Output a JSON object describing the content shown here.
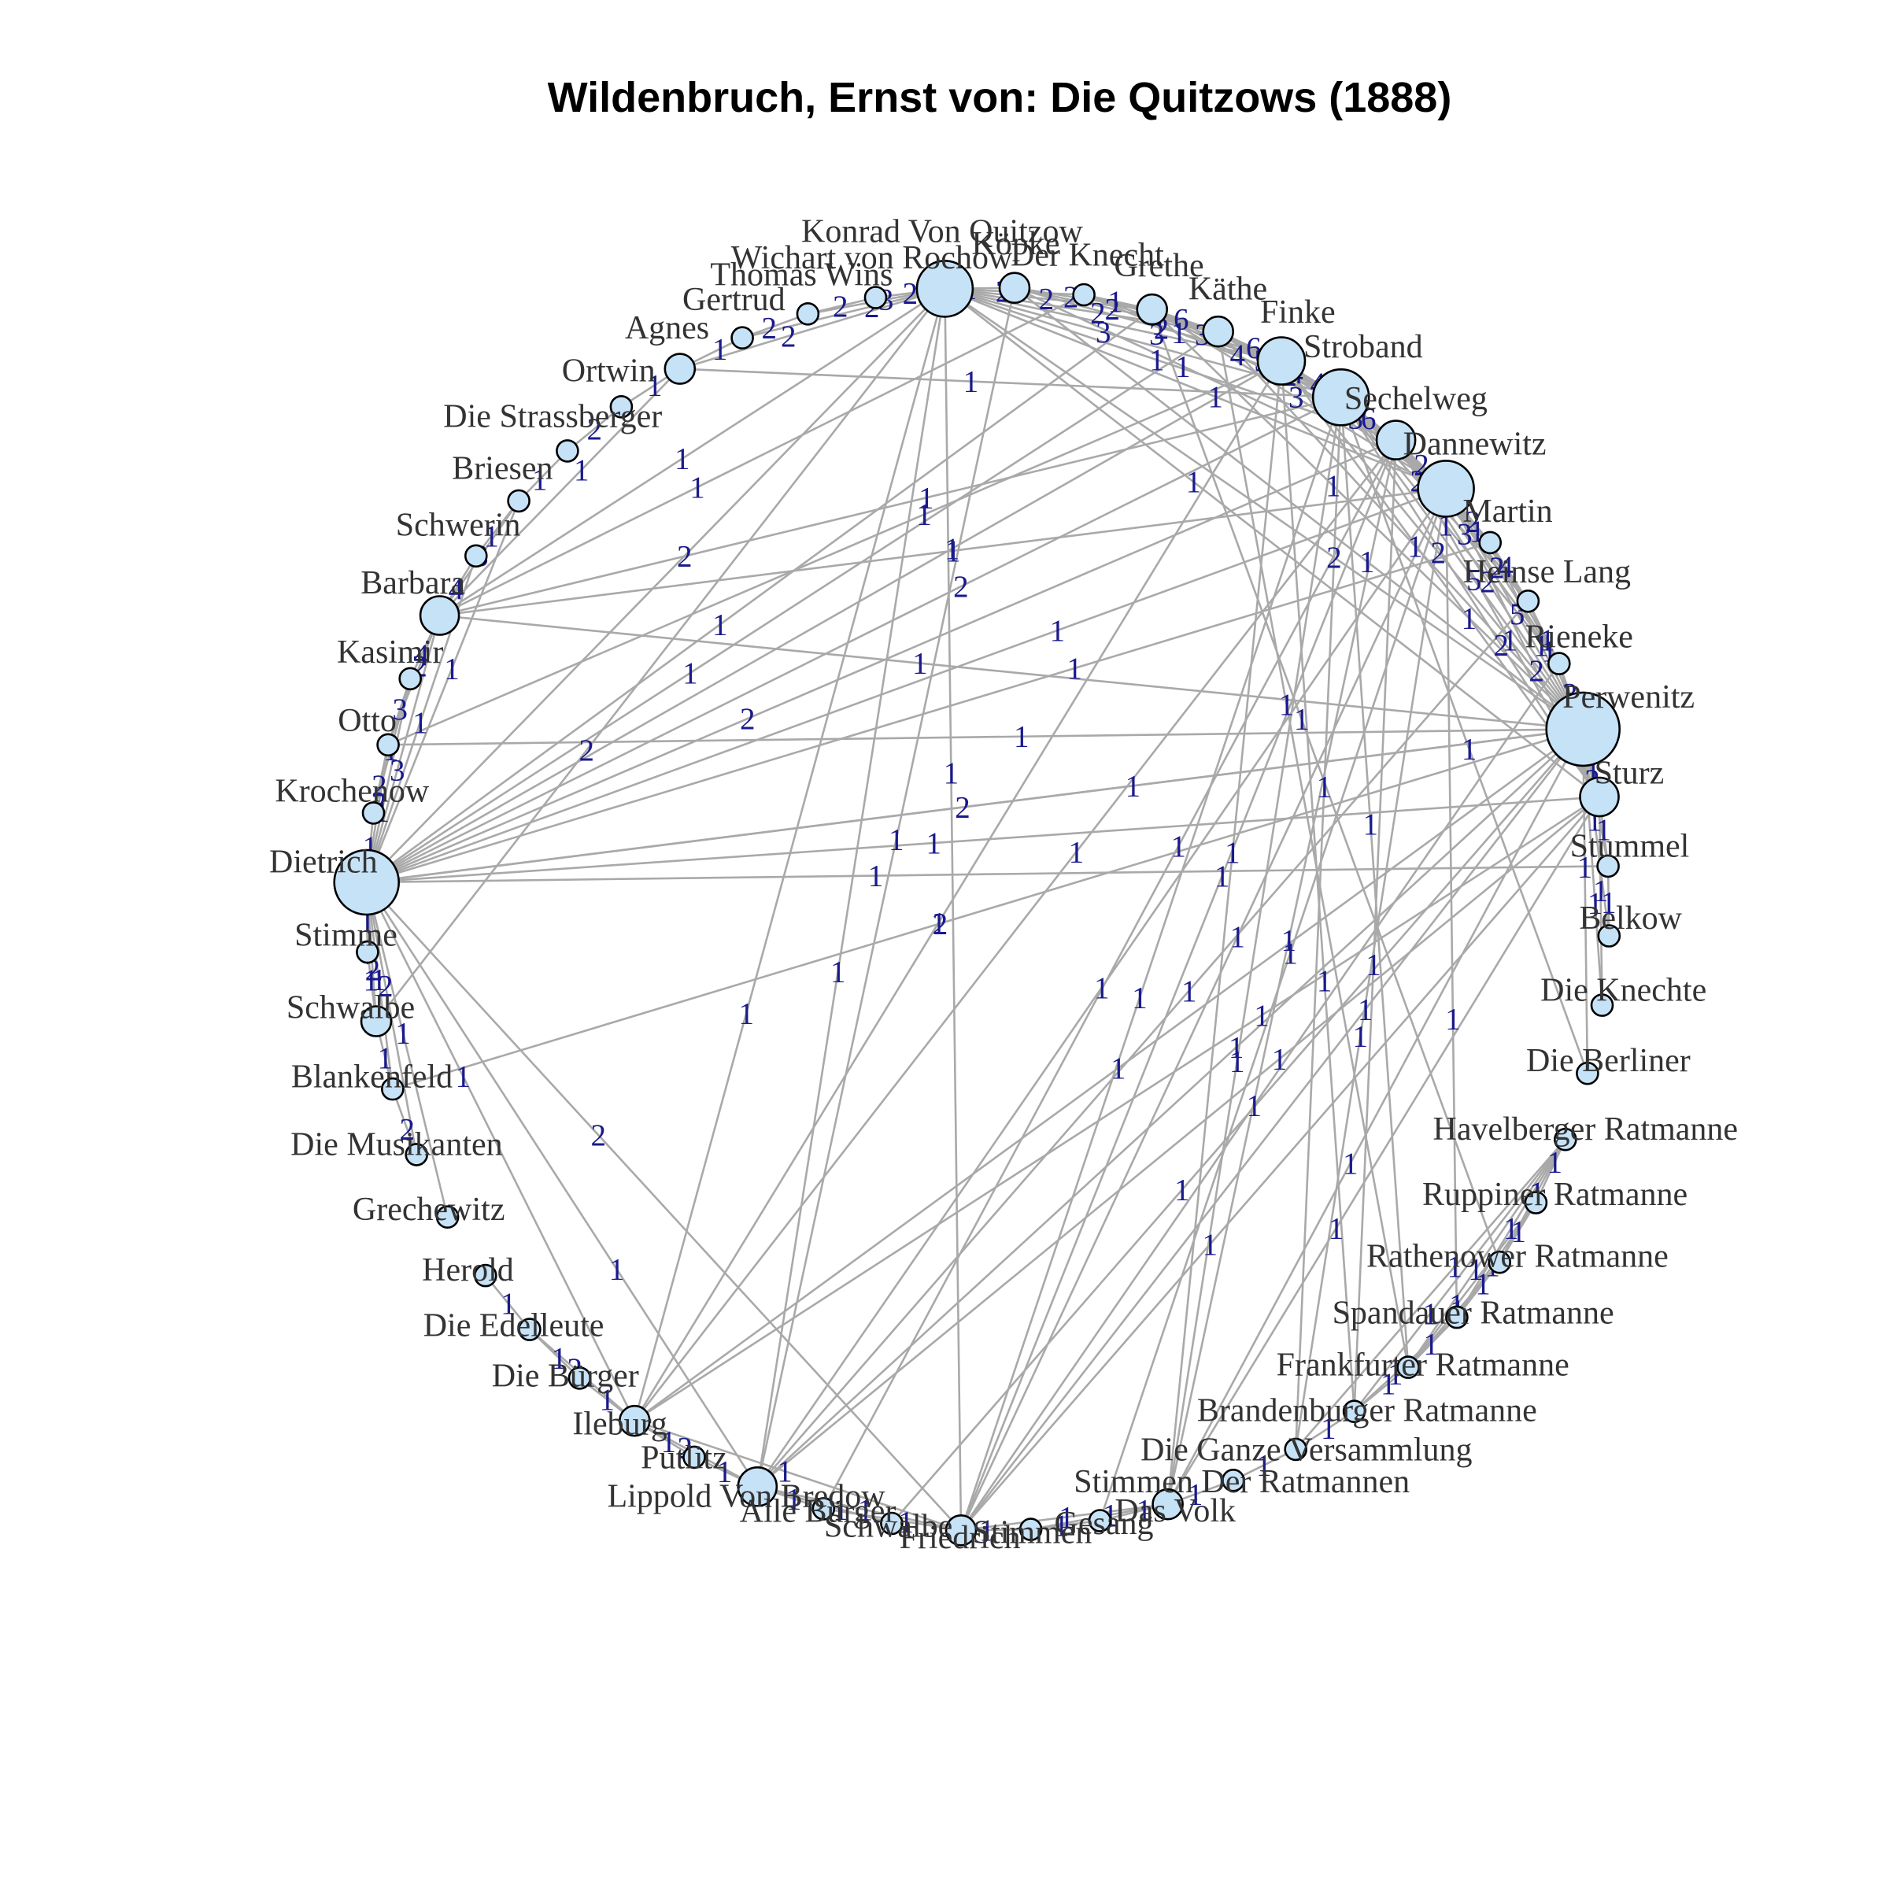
{
  "title": "Wildenbruch, Ernst von: Die Quitzows (1888)",
  "colors": {
    "edge": "#a9a9a9",
    "node_fill": "#c6e2f7",
    "node_stroke": "#000000",
    "edge_label": "#1a1a8c",
    "node_label": "#333333"
  },
  "layout": "circle",
  "nodes": [
    {
      "name": "Konrad Von Quitzow",
      "size": 5
    },
    {
      "name": "Köpke",
      "size": 2
    },
    {
      "name": "Der Knecht",
      "size": 1
    },
    {
      "name": "Grethe",
      "size": 2
    },
    {
      "name": "Käthe",
      "size": 2
    },
    {
      "name": "Finke",
      "size": 4
    },
    {
      "name": "Stroband",
      "size": 5
    },
    {
      "name": "Sechelweg",
      "size": 3
    },
    {
      "name": "Dannewitz",
      "size": 5
    },
    {
      "name": "Martin",
      "size": 1
    },
    {
      "name": "Heinse Lang",
      "size": 1
    },
    {
      "name": "Rieneke",
      "size": 1
    },
    {
      "name": "Perwenitz",
      "size": 7
    },
    {
      "name": "Sturz",
      "size": 3
    },
    {
      "name": "Stummel",
      "size": 1
    },
    {
      "name": "Belkow",
      "size": 1
    },
    {
      "name": "Die Knechte",
      "size": 1
    },
    {
      "name": "Die Berliner",
      "size": 1
    },
    {
      "name": "Havelberger Ratmanne",
      "size": 1
    },
    {
      "name": "Ruppiner Ratmanne",
      "size": 1
    },
    {
      "name": "Rathenower Ratmanne",
      "size": 1
    },
    {
      "name": "Spandauer Ratmanne",
      "size": 1
    },
    {
      "name": "Frankfurter Ratmanne",
      "size": 1
    },
    {
      "name": "Brandenburger Ratmanne",
      "size": 1
    },
    {
      "name": "Die Ganze Versammlung",
      "size": 1
    },
    {
      "name": "Stimmen Der Ratmannen",
      "size": 1
    },
    {
      "name": "Das Volk",
      "size": 2
    },
    {
      "name": "Gesang",
      "size": 1
    },
    {
      "name": "Stimmen",
      "size": 1
    },
    {
      "name": "Friedrich",
      "size": 2
    },
    {
      "name": "Schwalbe",
      "size": 1
    },
    {
      "name": "Alle Bürger",
      "size": 1
    },
    {
      "name": "Lippold Von Bredow",
      "size": 3
    },
    {
      "name": "Putlitz",
      "size": 1
    },
    {
      "name": "Ileburg",
      "size": 2
    },
    {
      "name": "Die Bürger",
      "size": 1
    },
    {
      "name": "Die Edelleute",
      "size": 1
    },
    {
      "name": "Herold",
      "size": 1
    },
    {
      "name": "Grechewitz",
      "size": 1
    },
    {
      "name": "Die Musikanten",
      "size": 1
    },
    {
      "name": "Blankenfeld",
      "size": 1
    },
    {
      "name": "Schwalbe",
      "size": 2
    },
    {
      "name": "Stimme",
      "size": 1
    },
    {
      "name": "Dietrich",
      "size": 6
    },
    {
      "name": "Krochenow",
      "size": 1
    },
    {
      "name": "Otto",
      "size": 1
    },
    {
      "name": "Kasimir",
      "size": 1
    },
    {
      "name": "Barbara",
      "size": 3
    },
    {
      "name": "Schwerin",
      "size": 1
    },
    {
      "name": "Briesen",
      "size": 1
    },
    {
      "name": "Die Strassberger",
      "size": 1
    },
    {
      "name": "Ortwin",
      "size": 1
    },
    {
      "name": "Agnes",
      "size": 2
    },
    {
      "name": "Gertrud",
      "size": 1
    },
    {
      "name": "Thomas Wins",
      "size": 1
    },
    {
      "name": "Wichart von Rochow",
      "size": 1
    }
  ],
  "edges": [
    [
      0,
      1,
      1
    ],
    [
      0,
      2,
      2
    ],
    [
      0,
      3,
      2
    ],
    [
      0,
      4,
      2
    ],
    [
      0,
      5,
      3
    ],
    [
      0,
      6,
      3
    ],
    [
      0,
      7,
      1
    ],
    [
      0,
      8,
      1
    ],
    [
      0,
      12,
      2
    ],
    [
      0,
      13,
      1
    ],
    [
      0,
      43,
      2
    ],
    [
      0,
      47,
      1
    ],
    [
      0,
      52,
      2
    ],
    [
      0,
      53,
      2
    ],
    [
      0,
      54,
      3
    ],
    [
      0,
      55,
      2
    ],
    [
      0,
      32,
      1
    ],
    [
      0,
      34,
      1
    ],
    [
      1,
      3,
      2
    ],
    [
      1,
      4,
      2
    ],
    [
      1,
      5,
      2
    ],
    [
      1,
      12,
      1
    ],
    [
      1,
      8,
      1
    ],
    [
      2,
      3,
      1
    ],
    [
      2,
      4,
      2
    ],
    [
      2,
      5,
      3
    ],
    [
      2,
      6,
      1
    ],
    [
      3,
      4,
      6
    ],
    [
      3,
      5,
      6
    ],
    [
      3,
      6,
      5
    ],
    [
      3,
      7,
      4
    ],
    [
      3,
      12,
      1
    ],
    [
      3,
      8,
      3
    ],
    [
      4,
      5,
      6
    ],
    [
      4,
      6,
      4
    ],
    [
      4,
      7,
      2
    ],
    [
      4,
      8,
      1
    ],
    [
      4,
      12,
      1
    ],
    [
      5,
      6,
      4
    ],
    [
      5,
      7,
      5
    ],
    [
      5,
      8,
      3
    ],
    [
      5,
      12,
      2
    ],
    [
      5,
      13,
      1
    ],
    [
      5,
      43,
      1
    ],
    [
      5,
      26,
      1
    ],
    [
      6,
      7,
      6
    ],
    [
      6,
      8,
      7
    ],
    [
      6,
      9,
      4
    ],
    [
      6,
      10,
      2
    ],
    [
      6,
      11,
      1
    ],
    [
      6,
      12,
      5
    ],
    [
      6,
      13,
      2
    ],
    [
      6,
      43,
      2
    ],
    [
      6,
      47,
      1
    ],
    [
      6,
      29,
      1
    ],
    [
      6,
      26,
      1
    ],
    [
      6,
      24,
      1
    ],
    [
      6,
      22,
      1
    ],
    [
      7,
      8,
      2
    ],
    [
      7,
      9,
      1
    ],
    [
      7,
      10,
      2
    ],
    [
      7,
      11,
      3
    ],
    [
      7,
      12,
      2
    ],
    [
      7,
      13,
      1
    ],
    [
      7,
      43,
      2
    ],
    [
      7,
      29,
      1
    ],
    [
      7,
      26,
      1
    ],
    [
      7,
      23,
      1
    ],
    [
      8,
      9,
      2
    ],
    [
      8,
      10,
      1
    ],
    [
      8,
      11,
      2
    ],
    [
      8,
      12,
      5
    ],
    [
      8,
      13,
      2
    ],
    [
      8,
      43,
      1
    ],
    [
      8,
      29,
      1
    ],
    [
      8,
      32,
      1
    ],
    [
      8,
      24,
      1
    ],
    [
      8,
      21,
      1
    ],
    [
      9,
      10,
      4
    ],
    [
      9,
      11,
      1
    ],
    [
      9,
      12,
      1
    ],
    [
      10,
      11,
      1
    ],
    [
      10,
      12,
      1
    ],
    [
      11,
      12,
      3
    ],
    [
      11,
      13,
      1
    ],
    [
      12,
      13,
      1
    ],
    [
      12,
      14,
      2
    ],
    [
      12,
      15,
      1
    ],
    [
      12,
      43,
      2
    ],
    [
      12,
      47,
      1
    ],
    [
      12,
      29,
      1
    ],
    [
      12,
      32,
      1
    ],
    [
      12,
      34,
      1
    ],
    [
      12,
      26,
      1
    ],
    [
      12,
      16,
      1
    ],
    [
      12,
      17,
      1
    ],
    [
      13,
      14,
      1
    ],
    [
      13,
      43,
      1
    ],
    [
      13,
      29,
      1
    ],
    [
      13,
      32,
      1
    ],
    [
      13,
      16,
      1
    ],
    [
      14,
      15,
      1
    ],
    [
      14,
      43,
      1
    ],
    [
      18,
      19,
      1
    ],
    [
      18,
      20,
      1
    ],
    [
      18,
      21,
      1
    ],
    [
      18,
      22,
      1
    ],
    [
      18,
      23,
      1
    ],
    [
      18,
      24,
      1
    ],
    [
      19,
      20,
      1
    ],
    [
      19,
      21,
      1
    ],
    [
      19,
      22,
      1
    ],
    [
      20,
      21,
      1
    ],
    [
      20,
      22,
      1
    ],
    [
      21,
      22,
      1
    ],
    [
      21,
      23,
      1
    ],
    [
      22,
      23,
      1
    ],
    [
      23,
      24,
      1
    ],
    [
      24,
      25,
      1
    ],
    [
      25,
      26,
      1
    ],
    [
      26,
      27,
      1
    ],
    [
      26,
      28,
      1
    ],
    [
      26,
      29,
      1
    ],
    [
      27,
      28,
      1
    ],
    [
      28,
      29,
      1
    ],
    [
      29,
      31,
      1
    ],
    [
      29,
      32,
      1
    ],
    [
      29,
      34,
      1
    ],
    [
      29,
      43,
      2
    ],
    [
      30,
      32,
      1
    ],
    [
      31,
      32,
      1
    ],
    [
      32,
      33,
      1
    ],
    [
      32,
      34,
      2
    ],
    [
      32,
      43,
      1
    ],
    [
      33,
      34,
      1
    ],
    [
      34,
      35,
      1
    ],
    [
      34,
      36,
      2
    ],
    [
      34,
      43,
      1
    ],
    [
      35,
      36,
      1
    ],
    [
      36,
      37,
      1
    ],
    [
      38,
      43,
      1
    ],
    [
      39,
      43,
      2
    ],
    [
      39,
      40,
      2
    ],
    [
      40,
      41,
      1
    ],
    [
      40,
      43,
      1
    ],
    [
      41,
      42,
      1
    ],
    [
      41,
      43,
      2
    ],
    [
      42,
      43,
      1
    ],
    [
      43,
      44,
      1
    ],
    [
      43,
      45,
      2
    ],
    [
      43,
      46,
      1
    ],
    [
      43,
      47,
      3
    ],
    [
      43,
      48,
      1
    ],
    [
      43,
      49,
      1
    ],
    [
      43,
      12,
      1
    ],
    [
      44,
      45,
      2
    ],
    [
      44,
      46,
      1
    ],
    [
      45,
      46,
      3
    ],
    [
      45,
      47,
      2
    ],
    [
      46,
      47,
      4
    ],
    [
      47,
      48,
      4
    ],
    [
      47,
      49,
      3
    ],
    [
      47,
      52,
      1
    ],
    [
      48,
      49,
      1
    ],
    [
      49,
      50,
      1
    ],
    [
      50,
      51,
      2
    ],
    [
      51,
      52,
      1
    ],
    [
      52,
      53,
      1
    ],
    [
      53,
      54,
      2
    ],
    [
      54,
      55,
      2
    ],
    [
      3,
      43,
      1
    ],
    [
      4,
      43,
      1
    ],
    [
      0,
      29,
      1
    ],
    [
      1,
      32,
      1
    ],
    [
      5,
      34,
      1
    ],
    [
      2,
      47,
      1
    ],
    [
      9,
      43,
      1
    ],
    [
      10,
      32,
      1
    ],
    [
      11,
      29,
      1
    ],
    [
      12,
      30,
      1
    ],
    [
      13,
      34,
      1
    ],
    [
      7,
      34,
      1
    ],
    [
      8,
      47,
      1
    ],
    [
      6,
      52,
      1
    ],
    [
      0,
      41,
      2
    ],
    [
      5,
      45,
      1
    ],
    [
      12,
      45,
      1
    ],
    [
      12,
      40,
      2
    ],
    [
      13,
      26,
      1
    ],
    [
      7,
      31,
      1
    ],
    [
      8,
      27,
      1
    ],
    [
      6,
      17,
      1
    ],
    [
      5,
      23,
      1
    ],
    [
      4,
      22,
      1
    ],
    [
      3,
      20,
      1
    ]
  ]
}
